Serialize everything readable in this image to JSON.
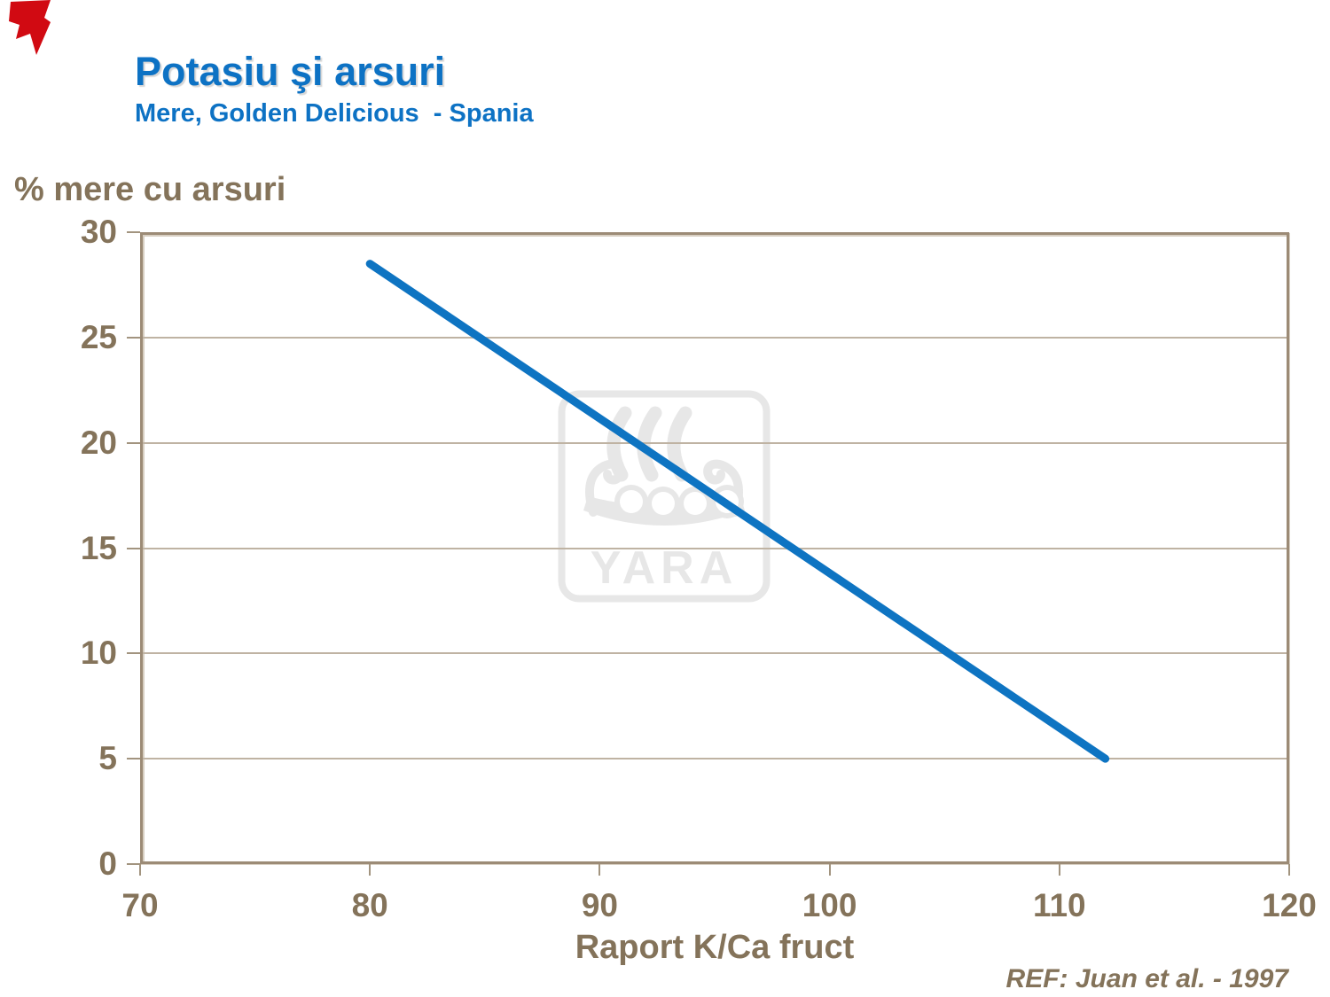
{
  "header": {
    "title": "Potasiu şi arsuri",
    "subtitle": "Mere, Golden Delicious  - Spania"
  },
  "footer": {
    "reference": "REF: Juan et al. - 1997"
  },
  "colors": {
    "title_blue": "#0d72c4",
    "line_blue": "#0e74c2",
    "axis_text_brown": "#84735a",
    "frame_brown": "#9c8b76",
    "gridline": "#bfb3a3",
    "tick": "#a2947f",
    "watermark_gray": "#e7e7e7",
    "ribbon_red": "#d10a12"
  },
  "watermark": {
    "label": "YARA",
    "icon": "viking-ship"
  },
  "chart_data": {
    "type": "line",
    "title": "Potasiu şi arsuri",
    "subtitle": "Mere, Golden Delicious - Spania",
    "xlabel": "Raport K/Ca fruct",
    "ylabel": "% mere cu arsuri",
    "xlim": [
      70,
      120
    ],
    "ylim": [
      0,
      30
    ],
    "x_ticks": [
      70,
      80,
      90,
      100,
      110,
      120
    ],
    "y_ticks": [
      0,
      5,
      10,
      15,
      20,
      25,
      30
    ],
    "grid": "horizontal",
    "legend": "none",
    "series": [
      {
        "name": "% mere cu arsuri",
        "x": [
          80,
          112
        ],
        "y": [
          28.5,
          5
        ]
      }
    ]
  }
}
